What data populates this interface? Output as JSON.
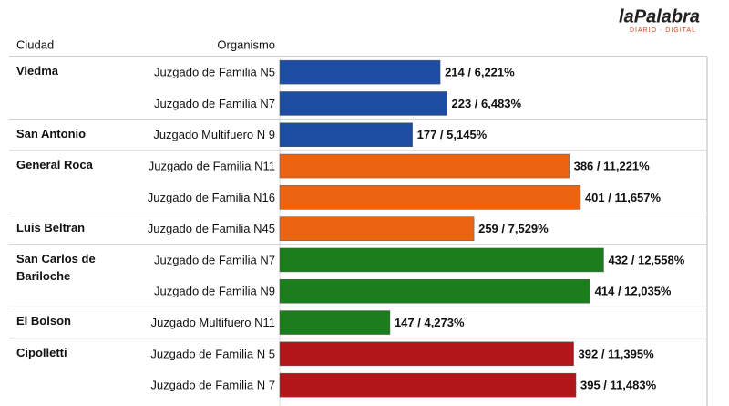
{
  "logo": {
    "name": "laPalabra",
    "tagline": "DIARIO · DIGITAL"
  },
  "chart_data": {
    "type": "bar",
    "orientation": "horizontal",
    "column_headers": [
      "Ciudad",
      "Organismo"
    ],
    "cities": [
      "Viedma",
      null,
      "San Antonio",
      "General Roca",
      null,
      "Luis Beltran",
      "San Carlos de Bariloche",
      null,
      "El Bolson",
      "Cipolletti",
      null
    ],
    "categories": [
      "Juzgado de Familia N5",
      "Juzgado de Familia N7",
      "Juzgado Multifuero N 9",
      "Juzgado de Familia N11",
      "Juzgado de Familia N16",
      "Juzgado de Familia N45",
      "Juzgado de Familia N7",
      "Juzgado de Familia N9",
      "Juzgado Multifuero N11",
      "Juzgado de Familia N 5",
      "Juzgado de Familia N 7"
    ],
    "values": [
      214,
      223,
      177,
      386,
      401,
      259,
      432,
      414,
      147,
      392,
      395
    ],
    "value_labels": [
      "214 / 6,221%",
      "223 / 6,483%",
      "177 / 5,145%",
      "386 / 11,221%",
      "401 / 11,657%",
      "259 / 7,529%",
      "432 / 12,558%",
      "414 / 12,035%",
      "147 / 4,273%",
      "392 / 11,395%",
      "395 / 11,483%"
    ],
    "colors": [
      "#1d4ea3",
      "#1d4ea3",
      "#1d4ea3",
      "#ec6411",
      "#ec6411",
      "#ec6411",
      "#1c7d1c",
      "#1c7d1c",
      "#1c7d1c",
      "#b3161a",
      "#b3161a"
    ],
    "xlim": [
      0,
      570
    ]
  }
}
